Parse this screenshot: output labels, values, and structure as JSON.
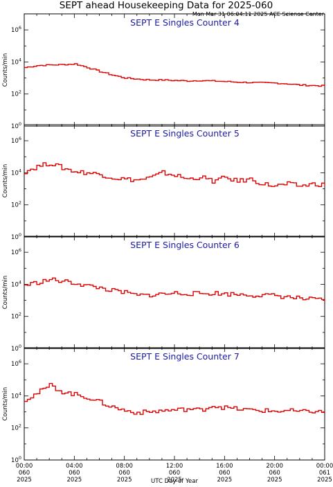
{
  "header": {
    "title": "SEPT ahead Housekeeping Data for 2025-060",
    "timestamp": "Mon Mar 31 06:04:11 2025 ACE Science Center"
  },
  "axes": {
    "ylabel": "Counts/min",
    "xlabel": "UTC Day of Year",
    "xticks": [
      {
        "time": "00:00",
        "doy": "060",
        "year": "2025"
      },
      {
        "time": "04:00",
        "doy": "060",
        "year": "2025"
      },
      {
        "time": "08:00",
        "doy": "060",
        "year": "2025"
      },
      {
        "time": "12:00",
        "doy": "060",
        "year": "2025"
      },
      {
        "time": "16:00",
        "doy": "060",
        "year": "2025"
      },
      {
        "time": "20:00",
        "doy": "060",
        "year": "2025"
      },
      {
        "time": "00:00",
        "doy": "061",
        "year": "2025"
      }
    ]
  },
  "colors": {
    "series": "#dd0000",
    "panel_title": "#1a1aa8"
  },
  "chart_data": [
    {
      "type": "line",
      "title": "SEPT E Singles Counter 4",
      "x_unit": "hours",
      "xlim": [
        0,
        24
      ],
      "ylim": [
        1,
        10000000
      ],
      "y_scale": "log",
      "x": [
        0,
        1,
        2,
        3,
        4,
        5,
        6,
        7,
        8,
        9,
        10,
        11,
        12,
        13,
        14,
        15,
        16,
        17,
        18,
        19,
        20,
        21,
        22,
        23,
        24
      ],
      "values": [
        4500,
        6000,
        6500,
        6800,
        7500,
        4500,
        2500,
        1500,
        1000,
        850,
        750,
        750,
        700,
        650,
        700,
        650,
        600,
        550,
        520,
        500,
        480,
        430,
        360,
        340,
        320
      ]
    },
    {
      "type": "line",
      "title": "SEPT E Singles Counter 5",
      "x_unit": "hours",
      "xlim": [
        0,
        24
      ],
      "ylim": [
        1,
        10000000
      ],
      "y_scale": "log",
      "x": [
        0,
        1,
        2,
        3,
        4,
        5,
        6,
        7,
        8,
        9,
        10,
        11,
        12,
        13,
        14,
        15,
        16,
        17,
        18,
        19,
        20,
        21,
        22,
        23,
        24
      ],
      "values": [
        12000,
        25000,
        40000,
        20000,
        12000,
        10000,
        8000,
        5000,
        4000,
        3500,
        5000,
        10000,
        7000,
        4000,
        5500,
        3000,
        5000,
        3000,
        4000,
        2000,
        1500,
        2000,
        1500,
        2000,
        1800
      ]
    },
    {
      "type": "line",
      "title": "SEPT E Singles Counter 6",
      "x_unit": "hours",
      "xlim": [
        0,
        24
      ],
      "ylim": [
        1,
        10000000
      ],
      "y_scale": "log",
      "x": [
        0,
        1,
        2,
        3,
        4,
        5,
        6,
        7,
        8,
        9,
        10,
        11,
        12,
        13,
        14,
        15,
        16,
        17,
        18,
        19,
        20,
        21,
        22,
        23,
        24
      ],
      "values": [
        9000,
        13000,
        20000,
        15000,
        12000,
        8000,
        6000,
        4000,
        3000,
        2000,
        2200,
        2500,
        2800,
        2700,
        2600,
        2800,
        2500,
        2400,
        2200,
        2000,
        2000,
        1600,
        1300,
        1100,
        1000
      ]
    },
    {
      "type": "line",
      "title": "SEPT E Singles Counter 7",
      "x_unit": "hours",
      "xlim": [
        0,
        24
      ],
      "ylim": [
        1,
        10000000
      ],
      "y_scale": "log",
      "x": [
        0,
        1,
        2,
        3,
        4,
        5,
        6,
        7,
        8,
        9,
        10,
        11,
        12,
        13,
        14,
        15,
        16,
        17,
        18,
        19,
        20,
        21,
        22,
        23,
        24
      ],
      "values": [
        6000,
        15000,
        45000,
        18000,
        12000,
        8000,
        4000,
        2000,
        1200,
        900,
        1000,
        1200,
        1300,
        1500,
        1300,
        2500,
        1800,
        1500,
        1300,
        1200,
        1100,
        1200,
        1000,
        1100,
        900
      ]
    }
  ]
}
